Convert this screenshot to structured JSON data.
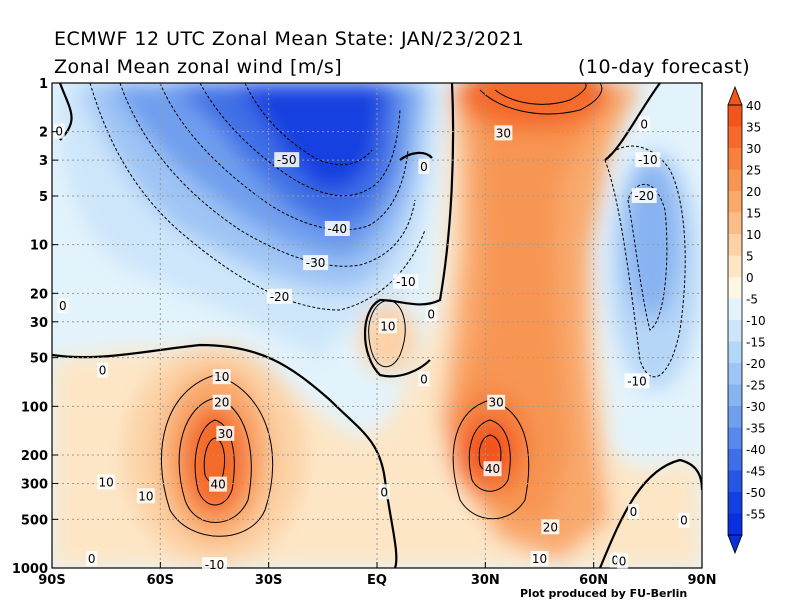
{
  "titles": {
    "line1": "ECMWF 12 UTC Zonal Mean State: JAN/23/2021",
    "line2": "Zonal Mean zonal wind [m/s]",
    "forecast": "(10-day forecast)",
    "credit": "Plot produced by FU-Berlin"
  },
  "chart_data": {
    "type": "heatmap",
    "variable": "Zonal Mean zonal wind [m/s]",
    "x_ticks": [
      "90S",
      "60S",
      "30S",
      "EQ",
      "30N",
      "60N",
      "90N"
    ],
    "x_values": [
      -90,
      -60,
      -30,
      0,
      30,
      60,
      90
    ],
    "y_ticks": [
      "1",
      "2",
      "3",
      "5",
      "10",
      "20",
      "30",
      "50",
      "100",
      "200",
      "300",
      "500",
      "1000"
    ],
    "y_values": [
      1,
      2,
      3,
      5,
      10,
      20,
      30,
      50,
      100,
      200,
      300,
      500,
      1000
    ],
    "y_scale": "log, inverted (pressure hPa)",
    "grid": true,
    "colorbar": {
      "position": "right",
      "labels": [
        "40",
        "35",
        "30",
        "25",
        "20",
        "15",
        "10",
        "5",
        "0",
        "-5",
        "-10",
        "-15",
        "-20",
        "-25",
        "-30",
        "-35",
        "-40",
        "-45",
        "-50",
        "-55"
      ],
      "colors": [
        "#f2541b",
        "#f46a2c",
        "#f6813f",
        "#f79553",
        "#f9a96c",
        "#fbbd87",
        "#fcd1a5",
        "#fde6c6",
        "#fff7e4",
        "#e3f3fc",
        "#cde6fa",
        "#b6d6f8",
        "#9fc5f5",
        "#88b3f1",
        "#709fee",
        "#5888ea",
        "#3f6fe6",
        "#2756e2",
        "#1340e0",
        "#0a2fde"
      ]
    },
    "contour_labels": [
      {
        "text": "0",
        "lon": -88,
        "p": 2
      },
      {
        "text": "-50",
        "lon": -25,
        "p": 3
      },
      {
        "text": "-40",
        "lon": -11,
        "p": 8
      },
      {
        "text": "-30",
        "lon": -17,
        "p": 13
      },
      {
        "text": "-20",
        "lon": -27,
        "p": 21
      },
      {
        "text": "-10",
        "lon": 8,
        "p": 17
      },
      {
        "text": "0",
        "lon": 13,
        "p": 3.3
      },
      {
        "text": "10",
        "lon": 3,
        "p": 32
      },
      {
        "text": "0",
        "lon": 15,
        "p": 27
      },
      {
        "text": "0",
        "lon": -87,
        "p": 24
      },
      {
        "text": "0",
        "lon": -76,
        "p": 60
      },
      {
        "text": "0",
        "lon": 13,
        "p": 68
      },
      {
        "text": "10",
        "lon": -43,
        "p": 66
      },
      {
        "text": "20",
        "lon": -43,
        "p": 95
      },
      {
        "text": "30",
        "lon": -42,
        "p": 148
      },
      {
        "text": "40",
        "lon": -44,
        "p": 305
      },
      {
        "text": "10",
        "lon": -75,
        "p": 295
      },
      {
        "text": "10",
        "lon": -64,
        "p": 360
      },
      {
        "text": "0",
        "lon": 2,
        "p": 340
      },
      {
        "text": "30",
        "lon": 33,
        "p": 95
      },
      {
        "text": "40",
        "lon": 32,
        "p": 245
      },
      {
        "text": "20",
        "lon": 48,
        "p": 560
      },
      {
        "text": "10",
        "lon": 45,
        "p": 880
      },
      {
        "text": "30",
        "lon": 35,
        "p": 2.05
      },
      {
        "text": "-10",
        "lon": 75,
        "p": 3
      },
      {
        "text": "-20",
        "lon": 74,
        "p": 5
      },
      {
        "text": "-10",
        "lon": 72,
        "p": 70
      },
      {
        "text": "0",
        "lon": 74,
        "p": 1.8
      },
      {
        "text": "0",
        "lon": 71,
        "p": 450
      },
      {
        "text": "0",
        "lon": 85,
        "p": 510
      },
      {
        "text": "0",
        "lon": -79,
        "p": 880
      },
      {
        "text": "0",
        "lon": 66,
        "p": 900
      },
      {
        "text": "0",
        "lon": 68,
        "p": 910
      },
      {
        "text": "-10",
        "lon": -45,
        "p": 960
      }
    ]
  }
}
